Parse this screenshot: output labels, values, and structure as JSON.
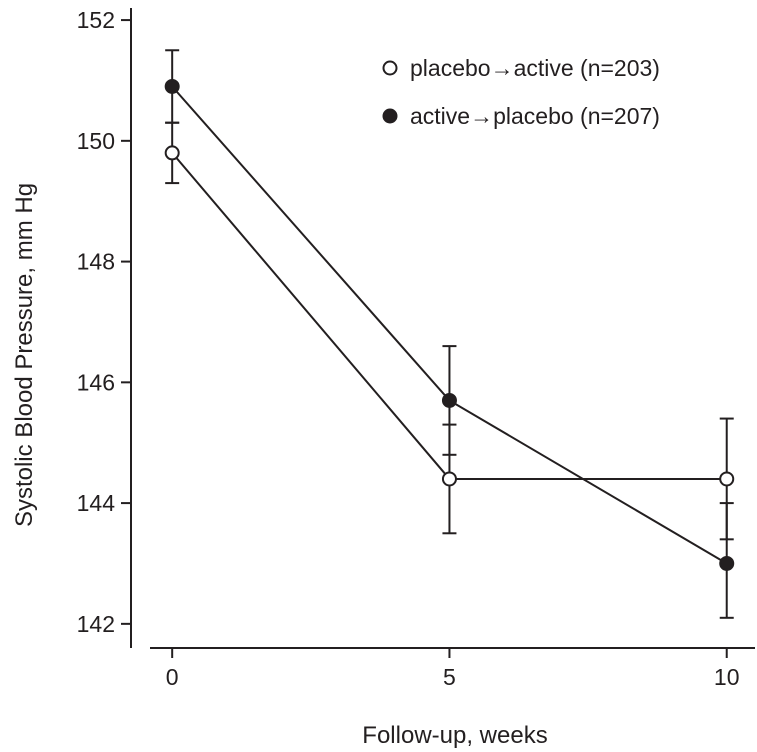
{
  "chart_data": {
    "type": "line",
    "xlabel": "Follow-up, weeks",
    "ylabel": "Systolic Blood Pressure, mm Hg",
    "x": [
      0,
      5,
      10
    ],
    "xticks": [
      0,
      5,
      10
    ],
    "xlim": [
      -0.4,
      10.6
    ],
    "ylim": [
      141.6,
      152.2
    ],
    "yticks": [
      142,
      144,
      146,
      148,
      150,
      152
    ],
    "grid": false,
    "legend_position": "top-right",
    "series": [
      {
        "name": "placebo→active (n=203)",
        "marker": "open-circle",
        "color": "#231f20",
        "values": [
          149.8,
          144.4,
          144.4
        ],
        "error_low": [
          149.3,
          143.5,
          143.4
        ],
        "error_high": [
          150.3,
          145.3,
          145.4
        ]
      },
      {
        "name": "active→placebo (n=207)",
        "marker": "filled-circle",
        "color": "#231f20",
        "values": [
          150.9,
          145.7,
          143.0
        ],
        "error_low": [
          150.3,
          144.8,
          142.1
        ],
        "error_high": [
          151.5,
          146.6,
          144.0
        ]
      }
    ]
  }
}
